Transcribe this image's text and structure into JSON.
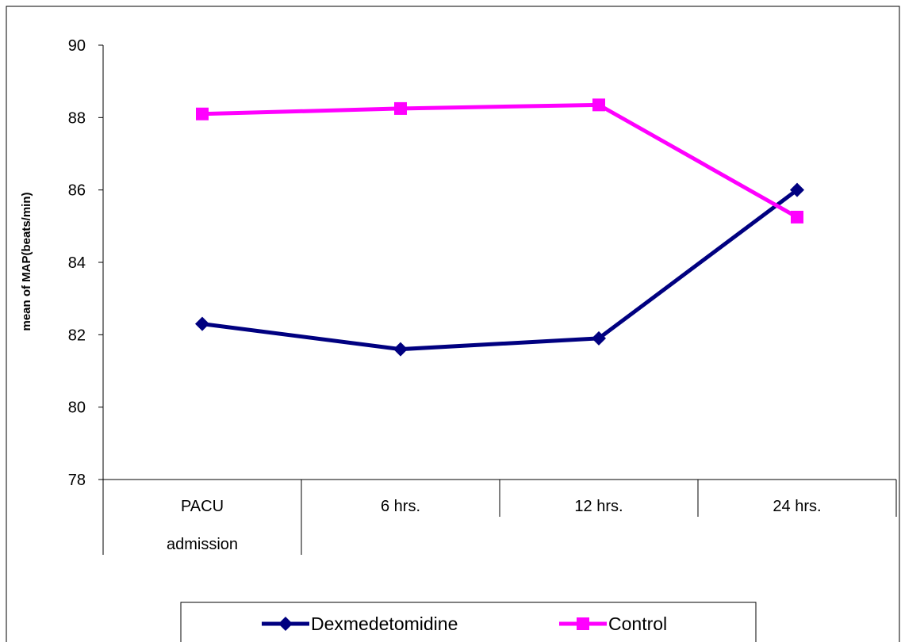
{
  "chart_data": {
    "type": "line",
    "title": "",
    "xlabel": "",
    "ylabel": "mean of MAP(beats/min)",
    "ylim": [
      78,
      90
    ],
    "yticks": [
      78,
      80,
      82,
      84,
      86,
      88,
      90
    ],
    "grid": false,
    "legend_position": "bottom",
    "categories": [
      [
        "PACU",
        "admission"
      ],
      [
        "6 hrs."
      ],
      [
        "12 hrs."
      ],
      [
        "24 hrs."
      ]
    ],
    "series": [
      {
        "name": "Dexmedetomidine",
        "color": "#000080",
        "marker": "diamond",
        "values": [
          82.3,
          81.6,
          81.9,
          86.0
        ]
      },
      {
        "name": "Control",
        "color": "#ff00ff",
        "marker": "square",
        "values": [
          88.1,
          88.25,
          88.35,
          85.25
        ]
      }
    ]
  }
}
